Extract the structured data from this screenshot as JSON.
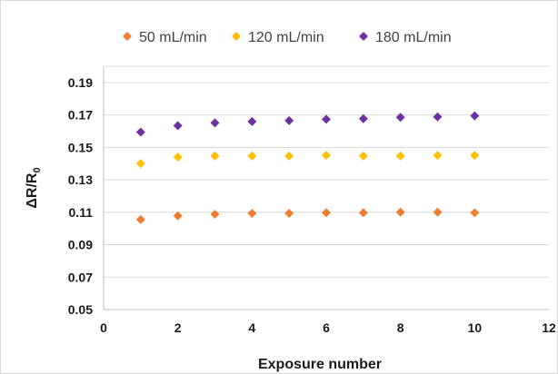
{
  "chart_data": {
    "type": "scatter",
    "title": "",
    "xlabel": "Exposure number",
    "ylabel_main": "ΔR/R",
    "ylabel_sub": "0",
    "xlim": [
      0,
      12
    ],
    "ylim": [
      0.05,
      0.2
    ],
    "x_ticks": [
      0,
      2,
      4,
      6,
      8,
      10,
      12
    ],
    "x_tick_labels": [
      "0",
      "2",
      "4",
      "6",
      "8",
      "10",
      "12"
    ],
    "y_ticks": [
      0.05,
      0.07,
      0.09,
      0.11,
      0.13,
      0.15,
      0.17,
      0.19
    ],
    "y_tick_labels": [
      "0.05",
      "0.07",
      "0.09",
      "0.11",
      "0.13",
      "0.15",
      "0.17",
      "0.19"
    ],
    "grid": true,
    "legend_position": "top",
    "marker": "diamond",
    "series": [
      {
        "name": "50 mL/min",
        "color": "#ED7D31",
        "x": [
          1,
          2,
          3,
          4,
          5,
          6,
          7,
          8,
          9,
          10
        ],
        "y": [
          0.1055,
          0.1078,
          0.1088,
          0.1093,
          0.1093,
          0.1097,
          0.1097,
          0.11,
          0.11,
          0.1097
        ]
      },
      {
        "name": "120 mL/min",
        "color": "#FFC000",
        "x": [
          1,
          2,
          3,
          4,
          5,
          6,
          7,
          8,
          9,
          10
        ],
        "y": [
          0.14,
          0.144,
          0.1447,
          0.1447,
          0.1447,
          0.1451,
          0.1447,
          0.1447,
          0.1451,
          0.1451
        ]
      },
      {
        "name": "180 mL/min",
        "color": "#7030A0",
        "x": [
          1,
          2,
          3,
          4,
          5,
          6,
          7,
          8,
          9,
          10
        ],
        "y": [
          0.1594,
          0.1634,
          0.1651,
          0.1659,
          0.1665,
          0.1673,
          0.1677,
          0.1685,
          0.1688,
          0.1694
        ]
      }
    ]
  }
}
